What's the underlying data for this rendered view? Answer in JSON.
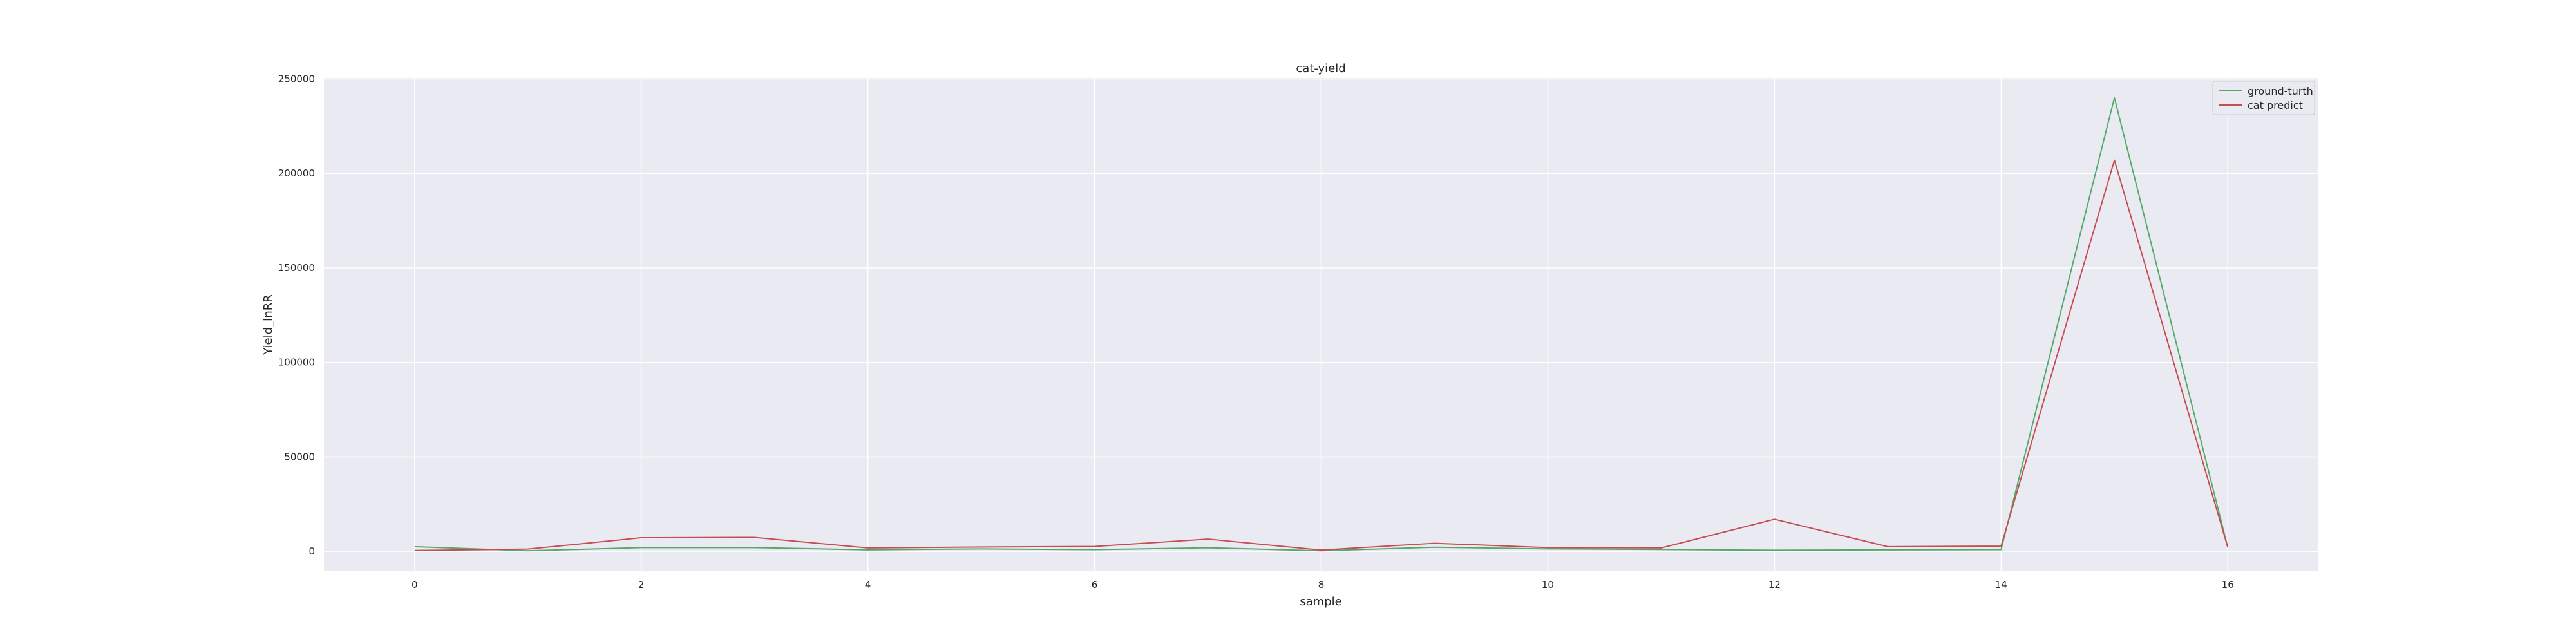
{
  "chart_data": {
    "type": "line",
    "title": "cat-yield",
    "xlabel": "sample",
    "ylabel": "Yield_InRR",
    "x": [
      0,
      1,
      2,
      3,
      4,
      5,
      6,
      7,
      8,
      9,
      10,
      11,
      12,
      13,
      14,
      15,
      16
    ],
    "xlim": [
      -0.8,
      16.8
    ],
    "ylim": [
      -10500,
      250500
    ],
    "xticks": [
      0,
      2,
      4,
      6,
      8,
      10,
      12,
      14,
      16
    ],
    "yticks": [
      0,
      50000,
      100000,
      150000,
      200000,
      250000
    ],
    "grid": true,
    "legend_position": "top-right",
    "series": [
      {
        "name": "ground-turth",
        "color": "#55a868",
        "values": [
          2500,
          300,
          2000,
          2000,
          800,
          1300,
          900,
          1900,
          300,
          2200,
          1300,
          1000,
          600,
          800,
          900,
          240000,
          2200
        ]
      },
      {
        "name": "cat predict",
        "color": "#c44e52",
        "values": [
          500,
          1200,
          7200,
          7400,
          1800,
          2300,
          2600,
          6500,
          700,
          4300,
          2000,
          1800,
          17000,
          2500,
          2800,
          207000,
          2200
        ]
      }
    ]
  }
}
